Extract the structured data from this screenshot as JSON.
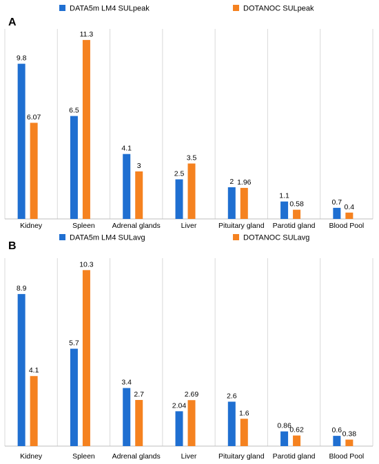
{
  "colors": {
    "series1": "#1f6fd1",
    "series2": "#f58220",
    "grid": "#d9d9d9"
  },
  "chart_data": [
    {
      "panel": "A",
      "type": "bar",
      "categories": [
        "Kidney",
        "Spleen",
        "Adrenal glands",
        "Liver",
        "Pituitary gland",
        "Parotid gland",
        "Blood Pool"
      ],
      "series": [
        {
          "name": "DATA5m LM4 SULpeak",
          "values": [
            9.8,
            6.5,
            4.1,
            2.5,
            2,
            1.1,
            0.7
          ],
          "labels": [
            "9.8",
            "6.5",
            "4.1",
            "2.5",
            "2",
            "1.1",
            "0.7"
          ]
        },
        {
          "name": "DOTANOC SULpeak",
          "values": [
            6.07,
            11.3,
            3,
            3.5,
            1.96,
            0.58,
            0.4
          ],
          "labels": [
            "6.07",
            "11.3",
            "3",
            "3.5",
            "1.96",
            "0.58",
            "0.4"
          ]
        }
      ],
      "ylim": [
        0,
        12
      ],
      "grid": "vertical",
      "legend": "top"
    },
    {
      "panel": "B",
      "type": "bar",
      "categories": [
        "Kidney",
        "Spleen",
        "Adrenal glands",
        "Liver",
        "Pituitary gland",
        "Parotid gland",
        "Blood Pool"
      ],
      "series": [
        {
          "name": "DATA5m LM4 SULavg",
          "values": [
            8.9,
            5.7,
            3.4,
            2.04,
            2.6,
            0.86,
            0.6
          ],
          "labels": [
            "8.9",
            "5.7",
            "3.4",
            "2.04",
            "2.6",
            "0.86",
            "0.6"
          ]
        },
        {
          "name": "DOTANOC SULavg",
          "values": [
            4.1,
            10.3,
            2.7,
            2.69,
            1.6,
            0.62,
            0.38
          ],
          "labels": [
            "4.1",
            "10.3",
            "2.7",
            "2.69",
            "1.6",
            "0.62",
            "0.38"
          ]
        }
      ],
      "ylim": [
        0,
        11
      ],
      "grid": "vertical",
      "legend": "top"
    }
  ]
}
